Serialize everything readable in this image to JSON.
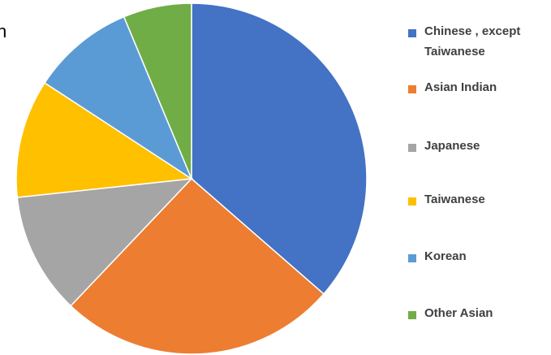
{
  "chart_data": {
    "type": "pie",
    "title": "n",
    "categories": [
      "Chinese , except Taiwanese",
      "Asian Indian",
      "Japanese",
      "Taiwanese",
      "Korean",
      "Other Asian"
    ],
    "values": [
      36.4,
      25.7,
      11.2,
      10.9,
      9.5,
      6.3
    ],
    "colors": [
      "#4472c4",
      "#ed7d31",
      "#a5a5a5",
      "#ffc000",
      "#5b9bd5",
      "#70ad47"
    ],
    "legend": "right"
  }
}
